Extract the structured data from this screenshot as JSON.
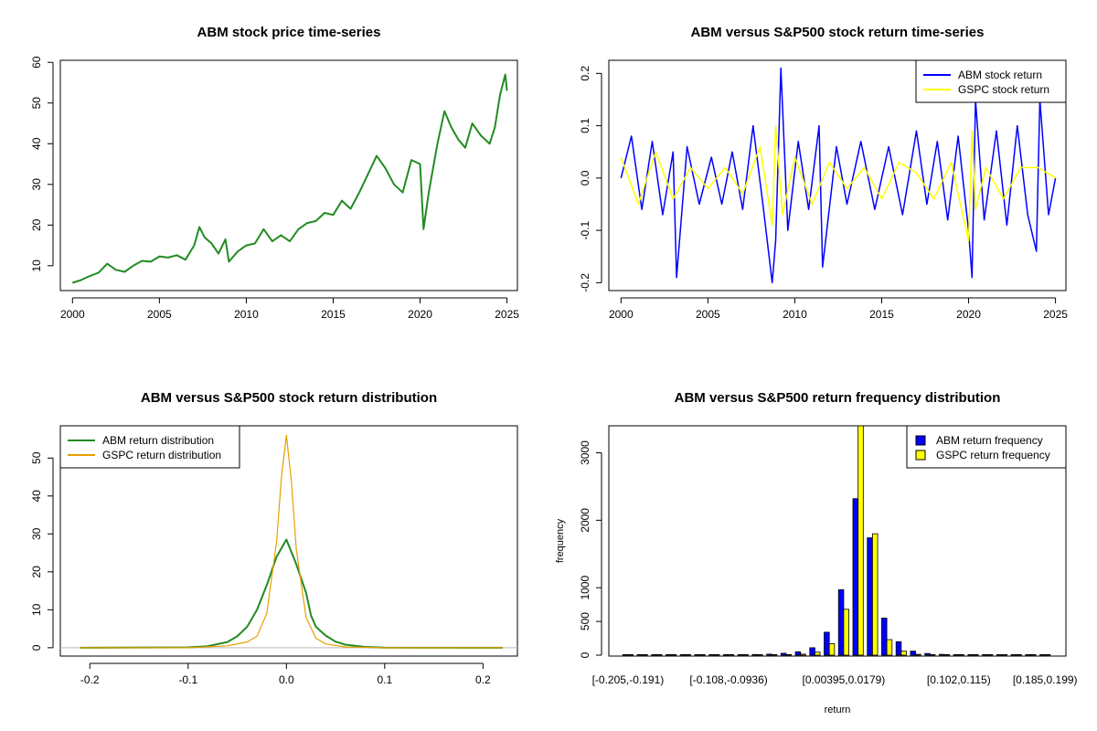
{
  "chart_data": [
    {
      "id": "p1",
      "type": "line",
      "title": "ABM stock price time-series",
      "xlabel": "",
      "ylabel": "",
      "xlim": [
        1999.3,
        2025.6
      ],
      "ylim": [
        3.9,
        60.5
      ],
      "x_ticks": [
        2000,
        2005,
        2010,
        2015,
        2020,
        2025
      ],
      "x_tick_labels": [
        "2000",
        "2005",
        "2010",
        "2015",
        "2020",
        "2025"
      ],
      "y_ticks": [
        10,
        20,
        30,
        40,
        50,
        60
      ],
      "y_tick_labels": [
        "10",
        "20",
        "30",
        "40",
        "50",
        "60"
      ],
      "series": [
        {
          "name": "ABM stock price",
          "color": "#228B22",
          "x": [
            2000.0,
            2000.5,
            2001.0,
            2001.5,
            2002.0,
            2002.5,
            2003.0,
            2003.5,
            2004.0,
            2004.5,
            2005.0,
            2005.5,
            2006.0,
            2006.5,
            2007.0,
            2007.3,
            2007.6,
            2008.0,
            2008.4,
            2008.8,
            2009.0,
            2009.5,
            2010.0,
            2010.5,
            2011.0,
            2011.5,
            2012.0,
            2012.5,
            2013.0,
            2013.5,
            2014.0,
            2014.5,
            2015.0,
            2015.5,
            2016.0,
            2016.5,
            2017.0,
            2017.5,
            2018.0,
            2018.5,
            2019.0,
            2019.5,
            2020.0,
            2020.2,
            2020.5,
            2021.0,
            2021.4,
            2021.8,
            2022.2,
            2022.6,
            2023.0,
            2023.5,
            2024.0,
            2024.3,
            2024.6,
            2024.9,
            2025.0
          ],
          "values": [
            5.8,
            6.5,
            7.5,
            8.3,
            10.5,
            9.0,
            8.5,
            10.0,
            11.2,
            11.0,
            12.3,
            12.0,
            12.6,
            11.5,
            15.0,
            19.5,
            17.0,
            15.5,
            13.0,
            16.5,
            11.0,
            13.5,
            15.0,
            15.5,
            19.0,
            16.0,
            17.5,
            16.0,
            19.0,
            20.5,
            21.0,
            23.0,
            22.5,
            26.0,
            24.0,
            28.0,
            32.5,
            37.0,
            34.0,
            30.0,
            28.0,
            36.0,
            35.0,
            19.0,
            28.0,
            40.0,
            48.0,
            44.0,
            41.0,
            39.0,
            45.0,
            42.0,
            40.0,
            44.0,
            52.0,
            57.0,
            53.0
          ]
        }
      ]
    },
    {
      "id": "p2",
      "type": "line",
      "title": "ABM versus S&P500 stock return time-series",
      "xlabel": "",
      "ylabel": "",
      "xlim": [
        1999.3,
        2025.6
      ],
      "ylim": [
        -0.215,
        0.225
      ],
      "x_ticks": [
        2000,
        2005,
        2010,
        2015,
        2020,
        2025
      ],
      "x_tick_labels": [
        "2000",
        "2005",
        "2010",
        "2015",
        "2020",
        "2025"
      ],
      "y_ticks": [
        -0.2,
        -0.1,
        0.0,
        0.1,
        0.2
      ],
      "y_tick_labels": [
        "-0.2",
        "-0.1",
        "0.0",
        "0.1",
        "0.2"
      ],
      "legend": {
        "position": "top-right",
        "entries": [
          "ABM stock return",
          "GSPC stock return"
        ]
      },
      "series": [
        {
          "name": "ABM stock return",
          "color": "#0000FF",
          "x": [
            2000.0,
            2000.6,
            2001.2,
            2001.8,
            2002.4,
            2003.0,
            2003.2,
            2003.8,
            2004.5,
            2005.2,
            2005.8,
            2006.4,
            2007.0,
            2007.6,
            2008.2,
            2008.7,
            2008.9,
            2009.2,
            2009.6,
            2010.2,
            2010.8,
            2011.4,
            2011.6,
            2012.4,
            2013.0,
            2013.8,
            2014.6,
            2015.4,
            2016.2,
            2017.0,
            2017.6,
            2018.2,
            2018.8,
            2019.4,
            2020.0,
            2020.2,
            2020.4,
            2020.9,
            2021.6,
            2022.2,
            2022.8,
            2023.4,
            2023.9,
            2024.1,
            2024.6,
            2025.0
          ],
          "values": [
            0.0,
            0.08,
            -0.06,
            0.07,
            -0.07,
            0.05,
            -0.19,
            0.06,
            -0.05,
            0.04,
            -0.05,
            0.05,
            -0.06,
            0.1,
            -0.06,
            -0.2,
            -0.12,
            0.21,
            -0.1,
            0.07,
            -0.06,
            0.1,
            -0.17,
            0.06,
            -0.05,
            0.07,
            -0.06,
            0.06,
            -0.07,
            0.09,
            -0.05,
            0.07,
            -0.08,
            0.08,
            -0.1,
            -0.19,
            0.15,
            -0.08,
            0.09,
            -0.09,
            0.1,
            -0.07,
            -0.14,
            0.15,
            -0.07,
            0.0
          ]
        },
        {
          "name": "GSPC stock return",
          "color": "#FFFF00",
          "x": [
            2000.0,
            2001.0,
            2002.0,
            2003.0,
            2004.0,
            2005.0,
            2006.0,
            2007.0,
            2008.0,
            2008.7,
            2008.9,
            2009.3,
            2010.0,
            2011.0,
            2012.0,
            2013.0,
            2014.0,
            2015.0,
            2016.0,
            2017.0,
            2018.0,
            2019.0,
            2020.0,
            2020.2,
            2020.4,
            2021.0,
            2022.0,
            2023.0,
            2024.0,
            2025.0
          ],
          "values": [
            0.04,
            -0.05,
            0.05,
            -0.04,
            0.02,
            -0.02,
            0.02,
            -0.03,
            0.06,
            -0.09,
            0.1,
            -0.07,
            0.04,
            -0.05,
            0.03,
            -0.02,
            0.02,
            -0.04,
            0.03,
            0.01,
            -0.04,
            0.03,
            -0.12,
            0.09,
            -0.06,
            0.02,
            -0.04,
            0.02,
            0.02,
            0.0
          ]
        }
      ]
    },
    {
      "id": "p3",
      "type": "line",
      "title": "ABM versus S&P500 stock return distribution",
      "xlabel": "",
      "ylabel": "",
      "xlim": [
        -0.23,
        0.235
      ],
      "ylim": [
        -2.2,
        58.5
      ],
      "x_ticks": [
        -0.2,
        -0.1,
        0.0,
        0.1,
        0.2
      ],
      "x_tick_labels": [
        "-0.2",
        "-0.1",
        "0.0",
        "0.1",
        "0.2"
      ],
      "y_ticks": [
        0,
        10,
        20,
        30,
        40,
        50
      ],
      "y_tick_labels": [
        "0",
        "10",
        "20",
        "30",
        "40",
        "50"
      ],
      "legend": {
        "position": "top-left",
        "entries": [
          "ABM return distribution",
          "GSPC return distribution"
        ]
      },
      "series": [
        {
          "name": "ABM return distribution",
          "color": "#228B22",
          "x": [
            -0.21,
            -0.1,
            -0.08,
            -0.06,
            -0.05,
            -0.04,
            -0.03,
            -0.02,
            -0.01,
            0.0,
            0.01,
            0.02,
            0.025,
            0.03,
            0.04,
            0.05,
            0.06,
            0.08,
            0.1,
            0.22
          ],
          "values": [
            0.0,
            0.1,
            0.4,
            1.5,
            3.0,
            5.5,
            10.0,
            16.5,
            24.0,
            28.5,
            22.0,
            14.5,
            8.5,
            5.5,
            3.2,
            1.6,
            0.8,
            0.2,
            0.05,
            0.0
          ]
        },
        {
          "name": "GSPC return distribution",
          "color": "#E69F00",
          "x": [
            -0.21,
            -0.1,
            -0.06,
            -0.04,
            -0.03,
            -0.02,
            -0.01,
            -0.005,
            0.0,
            0.005,
            0.01,
            0.02,
            0.03,
            0.04,
            0.06,
            0.1,
            0.22
          ],
          "values": [
            0.0,
            0.0,
            0.5,
            1.5,
            3.0,
            9.0,
            28.0,
            45.0,
            56.0,
            44.0,
            26.0,
            8.0,
            2.5,
            1.0,
            0.2,
            0.0,
            0.0
          ]
        }
      ]
    },
    {
      "id": "p4",
      "type": "bar",
      "title": "ABM versus S&P500 return frequency distribution",
      "xlabel": "return",
      "ylabel": "frequency",
      "ylim": [
        0,
        3400
      ],
      "y_ticks": [
        0,
        500,
        1000,
        2000,
        3000
      ],
      "y_tick_labels": [
        "0",
        "500",
        "1000",
        "2000",
        "3000"
      ],
      "x_tick_labels": [
        "[-0.205,-0.191)",
        "[-0.108,-0.0936)",
        "[0.00395,0.0179)",
        "[0.102,0.115)",
        "[0.185,0.199)"
      ],
      "x_tick_positions": [
        0,
        7,
        15,
        23,
        29
      ],
      "legend": {
        "position": "top-right",
        "entries": [
          "ABM return frequency",
          "GSPC return frequency"
        ]
      },
      "bin_count": 30,
      "series": [
        {
          "name": "ABM return frequency",
          "color": "#0000FF",
          "values": [
            5,
            4,
            3,
            3,
            3,
            4,
            4,
            6,
            8,
            10,
            15,
            28,
            50,
            110,
            340,
            970,
            2320,
            1740,
            550,
            200,
            60,
            25,
            12,
            8,
            5,
            4,
            3,
            3,
            3,
            2
          ]
        },
        {
          "name": "GSPC return frequency",
          "color": "#FFFF00",
          "values": [
            0,
            0,
            0,
            0,
            0,
            0,
            0,
            0,
            1,
            2,
            3,
            6,
            15,
            45,
            170,
            680,
            3400,
            1800,
            230,
            60,
            12,
            4,
            2,
            1,
            0,
            0,
            0,
            0,
            0,
            0
          ]
        }
      ]
    }
  ]
}
